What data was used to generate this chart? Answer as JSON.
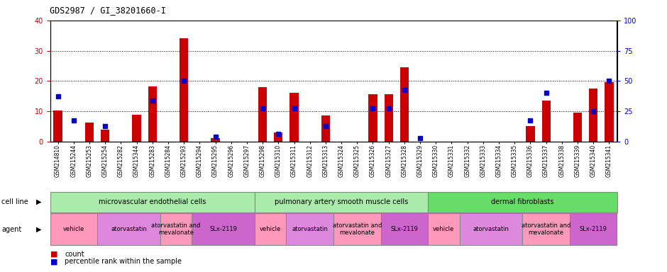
{
  "title": "GDS2987 / GI_38201660-I",
  "samples": [
    "GSM214810",
    "GSM215244",
    "GSM215253",
    "GSM215254",
    "GSM215282",
    "GSM215344",
    "GSM215283",
    "GSM215284",
    "GSM215293",
    "GSM215294",
    "GSM215295",
    "GSM215296",
    "GSM215297",
    "GSM215298",
    "GSM215310",
    "GSM215311",
    "GSM215312",
    "GSM215313",
    "GSM215324",
    "GSM215325",
    "GSM215326",
    "GSM215327",
    "GSM215328",
    "GSM215329",
    "GSM215330",
    "GSM215331",
    "GSM215332",
    "GSM215333",
    "GSM215334",
    "GSM215335",
    "GSM215336",
    "GSM215337",
    "GSM215338",
    "GSM215339",
    "GSM215340",
    "GSM215341"
  ],
  "count": [
    10.3,
    0,
    6.3,
    4.0,
    0,
    8.9,
    18.2,
    0,
    34.0,
    0,
    1.2,
    0,
    0,
    18.0,
    3.0,
    16.0,
    0,
    8.5,
    0,
    0,
    15.5,
    15.5,
    24.5,
    0,
    0,
    0,
    0,
    0,
    0,
    0,
    5.0,
    13.5,
    0,
    9.5,
    17.5,
    19.5
  ],
  "percentile": [
    37.5,
    17.5,
    0,
    12.5,
    0,
    0,
    33.75,
    0,
    50.0,
    0,
    3.75,
    0,
    0,
    27.5,
    6.25,
    27.5,
    0,
    12.5,
    0,
    0,
    27.5,
    27.5,
    42.5,
    2.5,
    0,
    0,
    0,
    0,
    0,
    0,
    17.5,
    40.0,
    0,
    0,
    25.0,
    50.0
  ],
  "cell_line_groups": [
    {
      "label": "microvascular endothelial cells",
      "start": 0,
      "end": 13,
      "color": "#AAEAAA"
    },
    {
      "label": "pulmonary artery smooth muscle cells",
      "start": 13,
      "end": 24,
      "color": "#AAEAAA"
    },
    {
      "label": "dermal fibroblasts",
      "start": 24,
      "end": 36,
      "color": "#66DD66"
    }
  ],
  "agent_groups": [
    {
      "label": "vehicle",
      "start": 0,
      "end": 3
    },
    {
      "label": "atorvastatin",
      "start": 3,
      "end": 7
    },
    {
      "label": "atorvastatin and\nmevalonate",
      "start": 7,
      "end": 9
    },
    {
      "label": "SLx-2119",
      "start": 9,
      "end": 13
    },
    {
      "label": "vehicle",
      "start": 13,
      "end": 15
    },
    {
      "label": "atorvastatin",
      "start": 15,
      "end": 18
    },
    {
      "label": "atorvastatin and\nmevalonate",
      "start": 18,
      "end": 21
    },
    {
      "label": "SLx-2119",
      "start": 21,
      "end": 24
    },
    {
      "label": "vehicle",
      "start": 24,
      "end": 26
    },
    {
      "label": "atorvastatin",
      "start": 26,
      "end": 30
    },
    {
      "label": "atorvastatin and\nmevalonate",
      "start": 30,
      "end": 33
    },
    {
      "label": "SLx-2119",
      "start": 33,
      "end": 36
    }
  ],
  "agent_colors": [
    "#FF99CC",
    "#CC88CC",
    "#FF99CC",
    "#CC44CC",
    "#FF99CC",
    "#CC88CC",
    "#FF99CC",
    "#CC44CC",
    "#FF99CC",
    "#CC88CC",
    "#FF99CC",
    "#CC44CC"
  ],
  "ylim_left": [
    0,
    40
  ],
  "ylim_right": [
    0,
    100
  ],
  "yticks_left": [
    0,
    10,
    20,
    30,
    40
  ],
  "yticks_right": [
    0,
    25,
    50,
    75,
    100
  ],
  "bar_color_count": "#CC0000",
  "bar_color_pct": "#0000CC",
  "tick_label_fontsize": 7,
  "sample_label_fontsize": 5.5
}
